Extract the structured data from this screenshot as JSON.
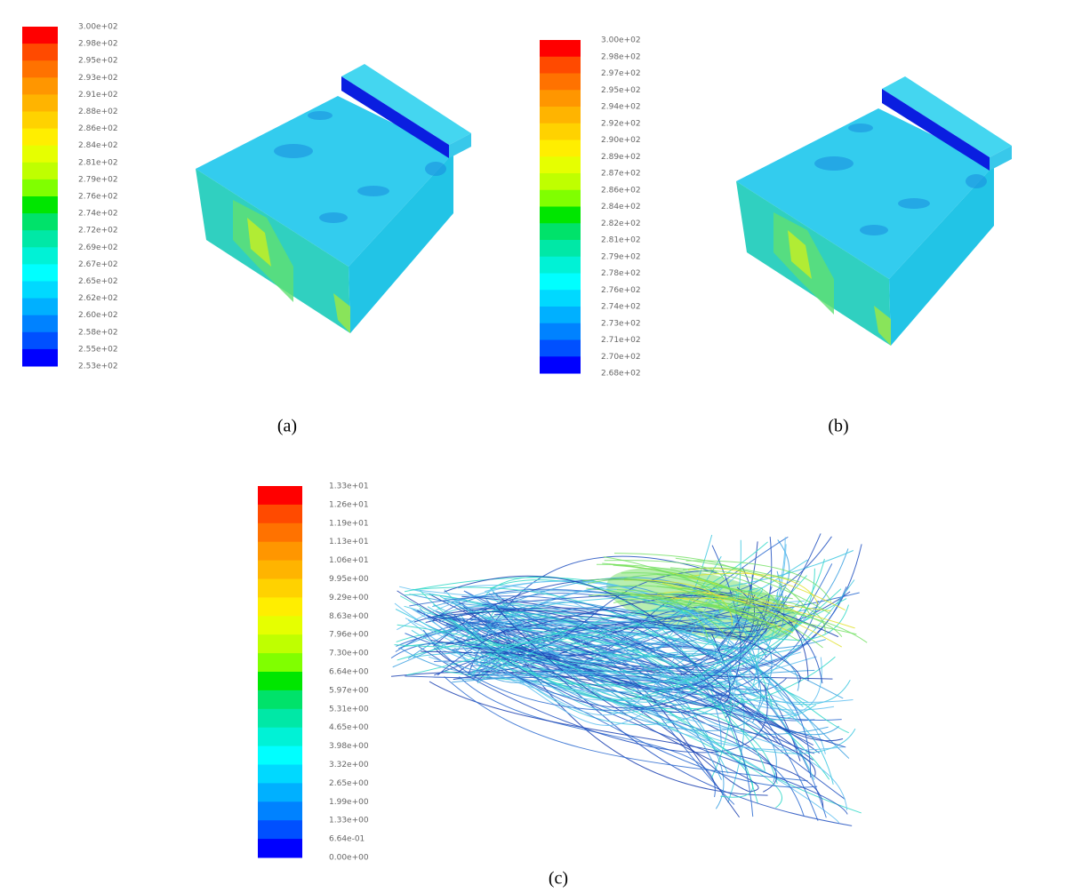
{
  "panels": [
    {
      "caption": "(a)",
      "legend_labels": [
        "3.00e+02",
        "2.98e+02",
        "2.95e+02",
        "2.93e+02",
        "2.91e+02",
        "2.88e+02",
        "2.86e+02",
        "2.84e+02",
        "2.81e+02",
        "2.79e+02",
        "2.76e+02",
        "2.74e+02",
        "2.72e+02",
        "2.69e+02",
        "2.67e+02",
        "2.65e+02",
        "2.62e+02",
        "2.60e+02",
        "2.58e+02",
        "2.55e+02",
        "2.53e+02"
      ]
    },
    {
      "caption": "(b)",
      "legend_labels": [
        "3.00e+02",
        "2.98e+02",
        "2.97e+02",
        "2.95e+02",
        "2.94e+02",
        "2.92e+02",
        "2.90e+02",
        "2.89e+02",
        "2.87e+02",
        "2.86e+02",
        "2.84e+02",
        "2.82e+02",
        "2.81e+02",
        "2.79e+02",
        "2.78e+02",
        "2.76e+02",
        "2.74e+02",
        "2.73e+02",
        "2.71e+02",
        "2.70e+02",
        "2.68e+02"
      ]
    },
    {
      "caption": "(c)",
      "legend_labels": [
        "1.33e+01",
        "1.26e+01",
        "1.19e+01",
        "1.13e+01",
        "1.06e+01",
        "9.95e+00",
        "9.29e+00",
        "8.63e+00",
        "7.96e+00",
        "7.30e+00",
        "6.64e+00",
        "5.97e+00",
        "5.31e+00",
        "4.65e+00",
        "3.98e+00",
        "3.32e+00",
        "2.65e+00",
        "1.99e+00",
        "1.33e+00",
        "6.64e-01",
        "0.00e+00"
      ]
    }
  ]
}
